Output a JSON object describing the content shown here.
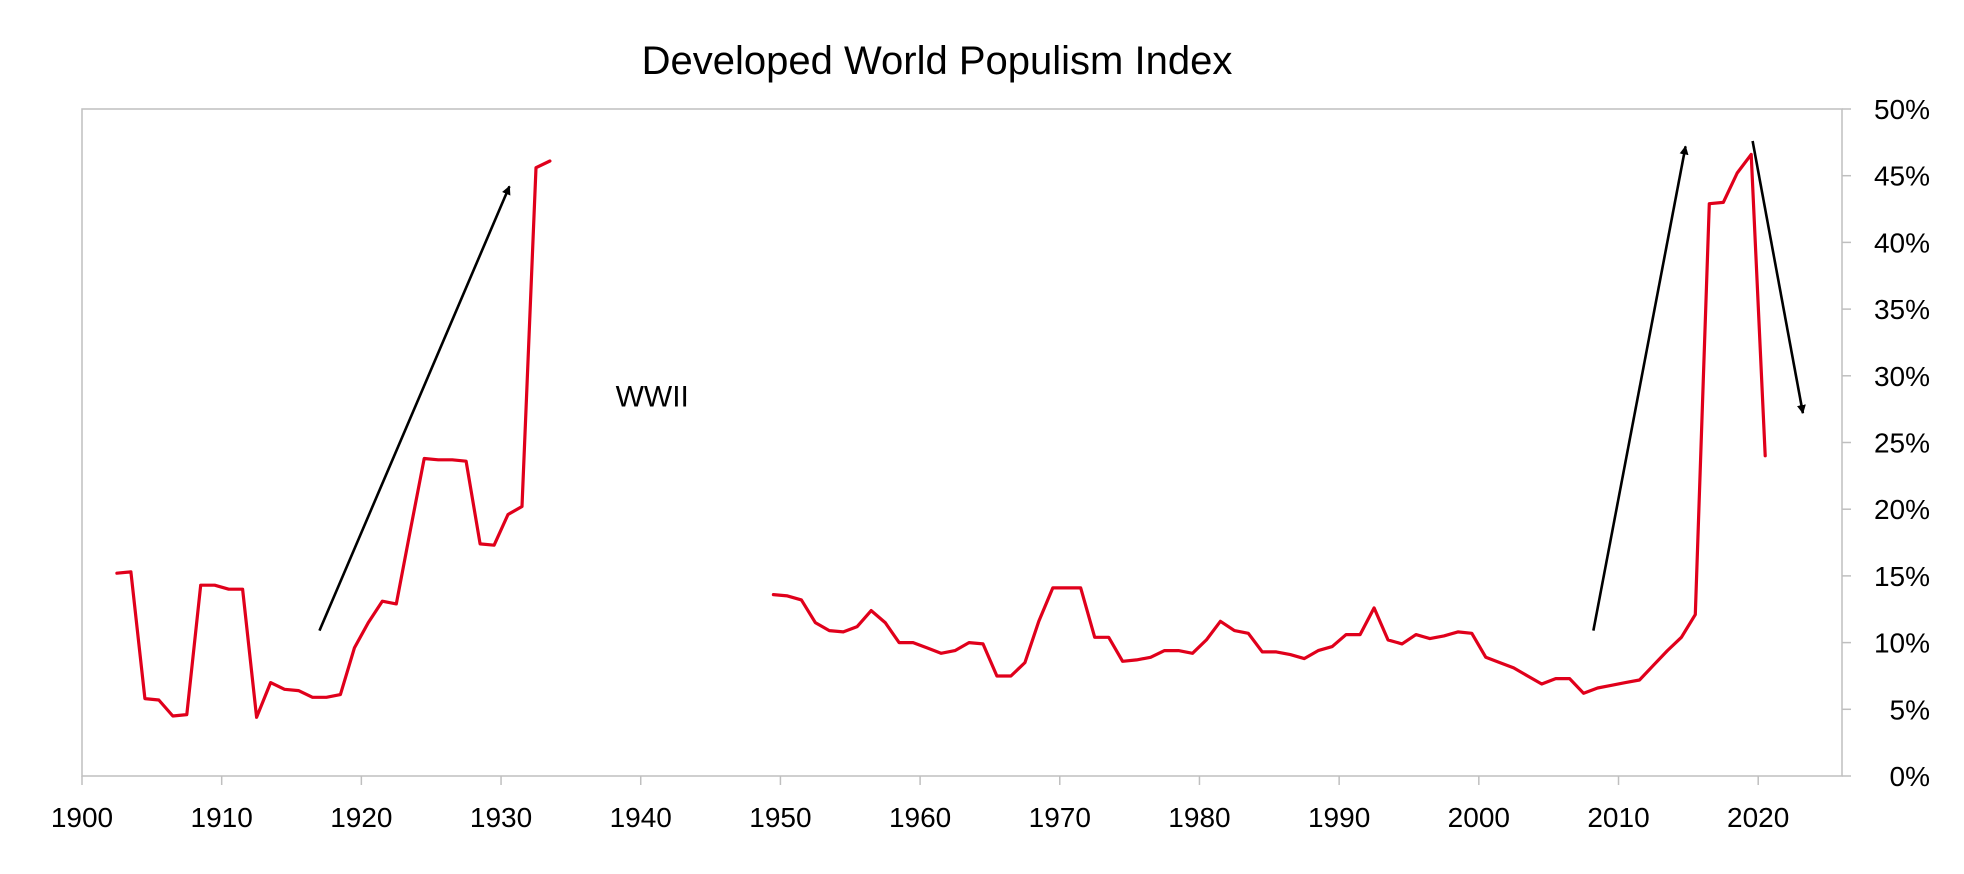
{
  "chart_data": {
    "type": "line",
    "title": "Developed World Populism Index",
    "xlabel": "",
    "ylabel": "",
    "xlim": [
      1900,
      2026
    ],
    "ylim": [
      0,
      50
    ],
    "x_ticks": [
      1900,
      1910,
      1920,
      1930,
      1940,
      1950,
      1960,
      1970,
      1980,
      1990,
      2000,
      2010,
      2020
    ],
    "x_tick_labels": [
      "1900",
      "1910",
      "1920",
      "1930",
      "1940",
      "1950",
      "1960",
      "1970",
      "1980",
      "1990",
      "2000",
      "2010",
      "2020"
    ],
    "y_ticks": [
      0,
      5,
      10,
      15,
      20,
      25,
      30,
      35,
      40,
      45,
      50
    ],
    "y_tick_labels": [
      "0%",
      "5%",
      "10%",
      "15%",
      "20%",
      "25%",
      "30%",
      "35%",
      "40%",
      "45%",
      "50%"
    ],
    "y_axis_side": "right",
    "grid": false,
    "legend": "none",
    "series": [
      {
        "color": "#e0001b",
        "segments": [
          [
            [
              1902.5,
              15.2
            ],
            [
              1903.5,
              15.3
            ],
            [
              1904.5,
              5.8
            ],
            [
              1905.5,
              5.7
            ],
            [
              1906.5,
              4.5
            ],
            [
              1907.5,
              4.6
            ],
            [
              1908.5,
              14.3
            ],
            [
              1909.5,
              14.3
            ],
            [
              1910.5,
              14.0
            ],
            [
              1911.5,
              14.0
            ],
            [
              1912.5,
              4.4
            ],
            [
              1913.5,
              7.0
            ],
            [
              1914.5,
              6.5
            ],
            [
              1915.5,
              6.4
            ],
            [
              1916.5,
              5.9
            ],
            [
              1917.5,
              5.9
            ],
            [
              1918.5,
              6.1
            ],
            [
              1919.5,
              9.6
            ],
            [
              1920.5,
              11.5
            ],
            [
              1921.5,
              13.1
            ],
            [
              1922.5,
              12.9
            ],
            [
              1923.5,
              18.4
            ],
            [
              1924.5,
              23.8
            ],
            [
              1925.5,
              23.7
            ],
            [
              1926.5,
              23.7
            ],
            [
              1927.5,
              23.6
            ],
            [
              1928.5,
              17.4
            ],
            [
              1929.5,
              17.3
            ],
            [
              1930.5,
              19.6
            ],
            [
              1931.5,
              20.2
            ],
            [
              1932.5,
              45.6
            ],
            [
              1933.5,
              46.1
            ]
          ],
          [
            [
              1949.5,
              13.6
            ],
            [
              1950.5,
              13.5
            ],
            [
              1951.5,
              13.2
            ],
            [
              1952.5,
              11.5
            ],
            [
              1953.5,
              10.9
            ],
            [
              1954.5,
              10.8
            ],
            [
              1955.5,
              11.2
            ],
            [
              1956.5,
              12.4
            ],
            [
              1957.5,
              11.5
            ],
            [
              1958.5,
              10.0
            ],
            [
              1959.5,
              10.0
            ],
            [
              1960.5,
              9.6
            ],
            [
              1961.5,
              9.2
            ],
            [
              1962.5,
              9.4
            ],
            [
              1963.5,
              10.0
            ],
            [
              1964.5,
              9.9
            ],
            [
              1965.5,
              7.5
            ],
            [
              1966.5,
              7.5
            ],
            [
              1967.5,
              8.5
            ],
            [
              1968.5,
              11.6
            ],
            [
              1969.5,
              14.1
            ],
            [
              1970.5,
              14.1
            ],
            [
              1971.5,
              14.1
            ],
            [
              1972.5,
              10.4
            ],
            [
              1973.5,
              10.4
            ],
            [
              1974.5,
              8.6
            ],
            [
              1975.5,
              8.7
            ],
            [
              1976.5,
              8.9
            ],
            [
              1977.5,
              9.4
            ],
            [
              1978.5,
              9.4
            ],
            [
              1979.5,
              9.2
            ],
            [
              1980.5,
              10.2
            ],
            [
              1981.5,
              11.6
            ],
            [
              1982.5,
              10.9
            ],
            [
              1983.5,
              10.7
            ],
            [
              1984.5,
              9.3
            ],
            [
              1985.5,
              9.3
            ],
            [
              1986.5,
              9.1
            ],
            [
              1987.5,
              8.8
            ],
            [
              1988.5,
              9.4
            ],
            [
              1989.5,
              9.7
            ],
            [
              1990.5,
              10.6
            ],
            [
              1991.5,
              10.6
            ],
            [
              1992.5,
              12.6
            ],
            [
              1993.5,
              10.2
            ],
            [
              1994.5,
              9.9
            ],
            [
              1995.5,
              10.6
            ],
            [
              1996.5,
              10.3
            ],
            [
              1997.5,
              10.5
            ],
            [
              1998.5,
              10.8
            ],
            [
              1999.5,
              10.7
            ],
            [
              2000.5,
              8.9
            ],
            [
              2001.5,
              8.5
            ],
            [
              2002.5,
              8.1
            ],
            [
              2003.5,
              7.5
            ],
            [
              2004.5,
              6.9
            ],
            [
              2005.5,
              7.3
            ],
            [
              2006.5,
              7.3
            ],
            [
              2007.5,
              6.2
            ],
            [
              2008.5,
              6.6
            ],
            [
              2009.5,
              6.8
            ],
            [
              2010.5,
              7.0
            ],
            [
              2011.5,
              7.2
            ],
            [
              2012.5,
              8.3
            ],
            [
              2013.5,
              9.4
            ],
            [
              2014.5,
              10.4
            ],
            [
              2015.5,
              12.1
            ],
            [
              2016.5,
              42.9
            ],
            [
              2017.5,
              43.0
            ],
            [
              2018.5,
              45.2
            ],
            [
              2019.5,
              46.6
            ],
            [
              2020.5,
              24.0
            ]
          ]
        ]
      }
    ],
    "annotations": [
      {
        "text": "WWII",
        "x": 1938.2,
        "y": 27.7
      }
    ],
    "arrows": [
      {
        "from": [
          1917.0,
          10.9
        ],
        "to": [
          1930.6,
          44.2
        ]
      },
      {
        "from": [
          2008.2,
          10.9
        ],
        "to": [
          2014.8,
          47.2
        ]
      },
      {
        "from": [
          2019.6,
          47.6
        ],
        "to": [
          2023.2,
          27.2
        ]
      }
    ]
  }
}
